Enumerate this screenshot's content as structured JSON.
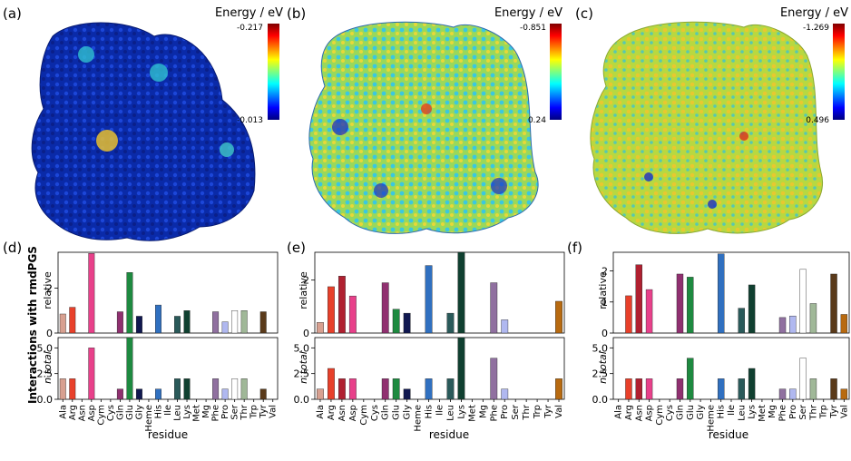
{
  "map_panels": [
    {
      "label": "(a)",
      "colorbar_title": "Energy / eV",
      "cb_max": "-0.217",
      "cb_min": "-0.013",
      "palette": "mostly-blue"
    },
    {
      "label": "(b)",
      "colorbar_title": "Energy / eV",
      "cb_max": "-0.851",
      "cb_min": "0.24",
      "palette": "mixed-cyan-yellow"
    },
    {
      "label": "(c)",
      "colorbar_title": "Energy / eV",
      "cb_max": "-1.269",
      "cb_min": "0.496",
      "palette": "mostly-yellow"
    }
  ],
  "bar_ylabel": "Interactions with rmdPGS",
  "panel_ylabel_relative": "relative",
  "panel_ylabel_total": "n total",
  "xlabel": "residue",
  "residues": [
    "Ala",
    "Arg",
    "Asn",
    "Asp",
    "Cym",
    "Cys",
    "Gln",
    "Glu",
    "Gly",
    "Heme",
    "His",
    "Ile",
    "Leu",
    "Lys",
    "Met",
    "Mg",
    "Phe",
    "Pro",
    "Ser",
    "Thr",
    "Trp",
    "Tyr",
    "Val"
  ],
  "residue_colors": [
    "#d8a090",
    "#e8402a",
    "#b02030",
    "#e8408a",
    "#c83060",
    "#d080b0",
    "#903070",
    "#1e8a40",
    "#101850",
    "#2060c0",
    "#3070c0",
    "#4080d0",
    "#2a5a5a",
    "#104030",
    "#103828",
    "#607080",
    "#9070a0",
    "#b0b8f0",
    "#ffffff",
    "#a0b898",
    "#7a8a70",
    "#5a3a1a",
    "#b86a10"
  ],
  "chart_data": [
    {
      "type": "bar",
      "panel": "(d)",
      "categories": [
        "Ala",
        "Arg",
        "Asn",
        "Asp",
        "Cym",
        "Cys",
        "Gln",
        "Glu",
        "Gly",
        "Heme",
        "His",
        "Ile",
        "Leu",
        "Lys",
        "Met",
        "Mg",
        "Phe",
        "Pro",
        "Ser",
        "Thr",
        "Trp",
        "Tyr",
        "Val"
      ],
      "series": [
        {
          "values": [
            0.85,
            1.15,
            0,
            3.55,
            0,
            0,
            0.95,
            2.7,
            0.75,
            0,
            1.25,
            0,
            0.75,
            1.0,
            0,
            0,
            0.95,
            0.5,
            1.0,
            1.0,
            0,
            0.95,
            0
          ]
        },
        {
          "values": [
            2,
            2,
            0,
            5,
            0,
            0,
            1,
            6,
            1,
            0,
            1,
            0,
            2,
            2,
            0,
            0,
            2,
            1,
            2,
            2,
            0,
            1,
            0
          ]
        }
      ],
      "ylim_relative": [
        0,
        3.6
      ],
      "yticks_relative": [
        "0",
        "2"
      ],
      "ylim_total": [
        0,
        6
      ],
      "yticks_total": [
        "0.0",
        "2.5",
        "5.0"
      ]
    },
    {
      "type": "bar",
      "panel": "(e)",
      "categories": [
        "Ala",
        "Arg",
        "Asn",
        "Asp",
        "Cym",
        "Cys",
        "Gln",
        "Glu",
        "Gly",
        "Heme",
        "His",
        "Ile",
        "Leu",
        "Lys",
        "Met",
        "Mg",
        "Phe",
        "Pro",
        "Ser",
        "Thr",
        "Trp",
        "Tyr",
        "Val"
      ],
      "series": [
        {
          "values": [
            0.4,
            1.75,
            2.15,
            1.4,
            0,
            0,
            1.9,
            0.9,
            0.75,
            0,
            2.55,
            0,
            0.75,
            3.05,
            0,
            0,
            1.9,
            0.5,
            0,
            0,
            0,
            0,
            1.2
          ]
        },
        {
          "values": [
            1,
            3,
            2,
            2,
            0,
            0,
            2,
            2,
            1,
            0,
            2,
            0,
            2,
            6,
            0,
            0,
            4,
            1,
            0,
            0,
            0,
            0,
            2
          ]
        }
      ],
      "ylim_relative": [
        0,
        3.05
      ],
      "yticks_relative": [
        "0",
        "2"
      ],
      "ylim_total": [
        0,
        6
      ],
      "yticks_total": [
        "0.0",
        "2.5",
        "5.0"
      ]
    },
    {
      "type": "bar",
      "panel": "(f)",
      "categories": [
        "Ala",
        "Arg",
        "Asn",
        "Asp",
        "Cym",
        "Cys",
        "Gln",
        "Glu",
        "Gly",
        "Heme",
        "His",
        "Ile",
        "Leu",
        "Lys",
        "Met",
        "Mg",
        "Phe",
        "Pro",
        "Ser",
        "Thr",
        "Trp",
        "Tyr",
        "Val"
      ],
      "series": [
        {
          "values": [
            0,
            1.2,
            2.2,
            1.4,
            0,
            0,
            1.9,
            1.8,
            0,
            0,
            2.55,
            0,
            0.8,
            1.55,
            0,
            0,
            0.5,
            0.55,
            2.05,
            0.95,
            0,
            1.9,
            0.6
          ]
        },
        {
          "values": [
            0,
            2,
            2,
            2,
            0,
            0,
            2,
            4,
            0,
            0,
            2,
            0,
            2,
            3,
            0,
            0,
            1,
            1,
            4,
            2,
            0,
            2,
            1
          ]
        }
      ],
      "ylim_relative": [
        0,
        2.6
      ],
      "yticks_relative": [
        "0",
        "1",
        "2"
      ],
      "ylim_total": [
        0,
        6
      ],
      "yticks_total": [
        "0.0",
        "2.5",
        "5.0"
      ]
    }
  ]
}
